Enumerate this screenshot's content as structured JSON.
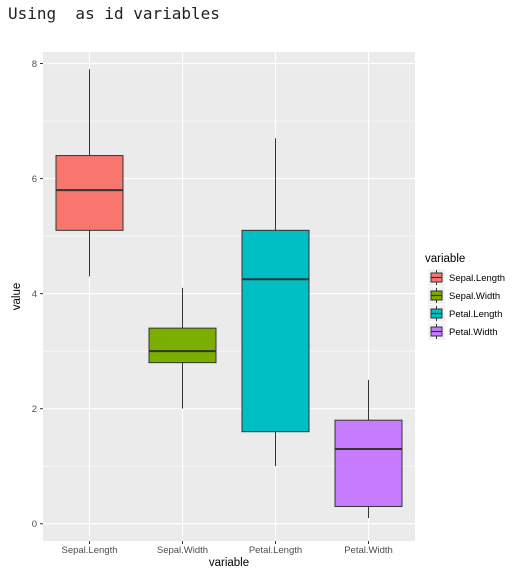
{
  "console": {
    "text": "Using  as id variables"
  },
  "chart_data": {
    "type": "boxplot",
    "xlabel": "variable",
    "ylabel": "value",
    "ylim": [
      -0.3,
      8.2
    ],
    "yticks": [
      0,
      2,
      4,
      6,
      8
    ],
    "grid": true,
    "legend": {
      "title": "variable",
      "position": "right"
    },
    "categories": [
      "Sepal.Length",
      "Sepal.Width",
      "Petal.Length",
      "Petal.Width"
    ],
    "boxes": [
      {
        "name": "Sepal.Length",
        "whisker_low": 4.3,
        "q1": 5.1,
        "median": 5.8,
        "q3": 6.4,
        "whisker_high": 7.9,
        "color": "#F8766D"
      },
      {
        "name": "Sepal.Width",
        "whisker_low": 2.0,
        "q1": 2.8,
        "median": 3.0,
        "q3": 3.4,
        "whisker_high": 4.1,
        "color": "#7CAE00"
      },
      {
        "name": "Petal.Length",
        "whisker_low": 1.0,
        "q1": 1.6,
        "median": 4.25,
        "q3": 5.1,
        "whisker_high": 6.7,
        "color": "#00BFC4"
      },
      {
        "name": "Petal.Width",
        "whisker_low": 0.1,
        "q1": 0.3,
        "median": 1.3,
        "q3": 1.8,
        "whisker_high": 2.5,
        "color": "#C77CFF"
      }
    ]
  }
}
